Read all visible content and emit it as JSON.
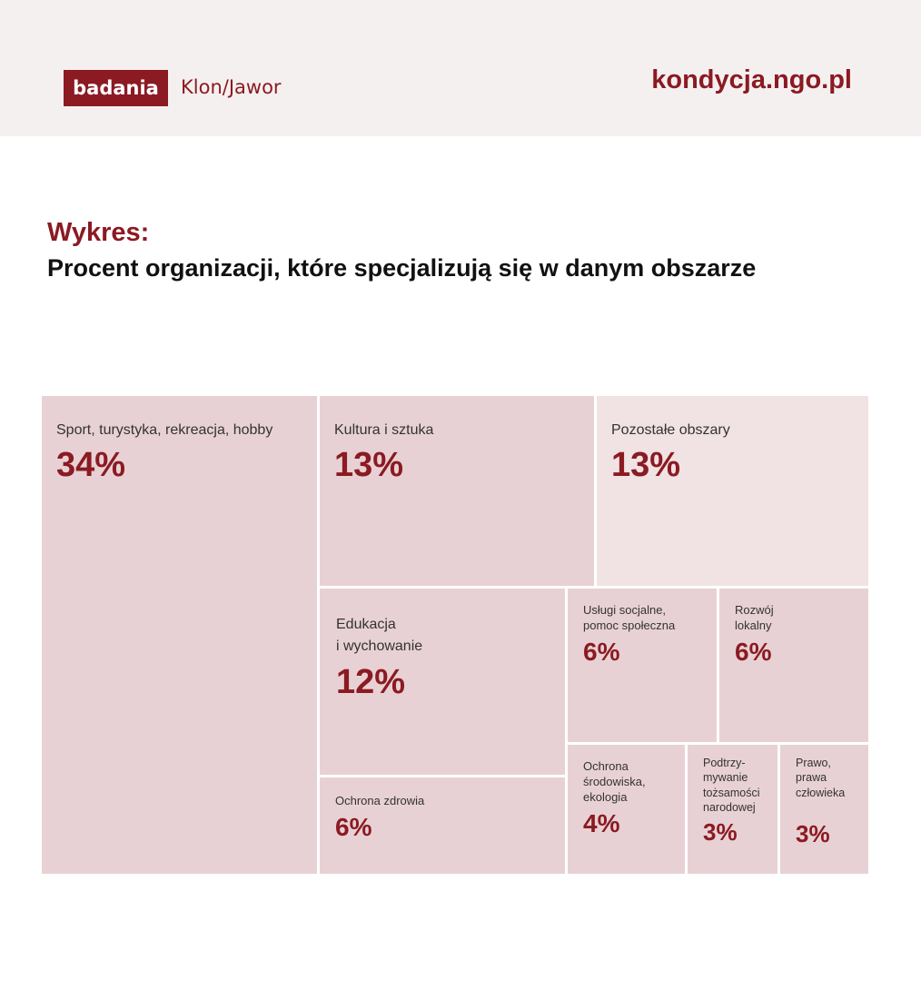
{
  "header": {
    "badge": "badania",
    "org": "Klon/Jawor",
    "site": "kondycja.ngo.pl"
  },
  "chart_data": {
    "type": "treemap",
    "title": "Wykres:",
    "subtitle": "Procent organizacji, które specjalizują się w danym obszarze",
    "colors": {
      "tile": "#e8d1d4",
      "tile_other": "#f1e2e3",
      "value": "#8b1a22"
    },
    "items": [
      {
        "label": "Sport, turystyka, rekreacja, hobby",
        "value": 34,
        "text": "34%"
      },
      {
        "label": "Kultura i sztuka",
        "value": 13,
        "text": "13%"
      },
      {
        "label": "Pozostałe obszary",
        "value": 13,
        "text": "13%"
      },
      {
        "label": "Edukacja\ni wychowanie",
        "value": 12,
        "text": "12%"
      },
      {
        "label": "Ochrona zdrowia",
        "value": 6,
        "text": "6%"
      },
      {
        "label": "Usługi socjalne,\npomoc społeczna",
        "value": 6,
        "text": "6%"
      },
      {
        "label": "Rozwój\nlokalny",
        "value": 6,
        "text": "6%"
      },
      {
        "label": "Ochrona\nśrodowiska,\nekologia",
        "value": 4,
        "text": "4%"
      },
      {
        "label": "Podtrzy-\nmywanie\ntożsamości\nnarodowej",
        "value": 3,
        "text": "3%"
      },
      {
        "label": "Prawo,\nprawa\nczłowieka",
        "value": 3,
        "text": "3%"
      }
    ]
  }
}
